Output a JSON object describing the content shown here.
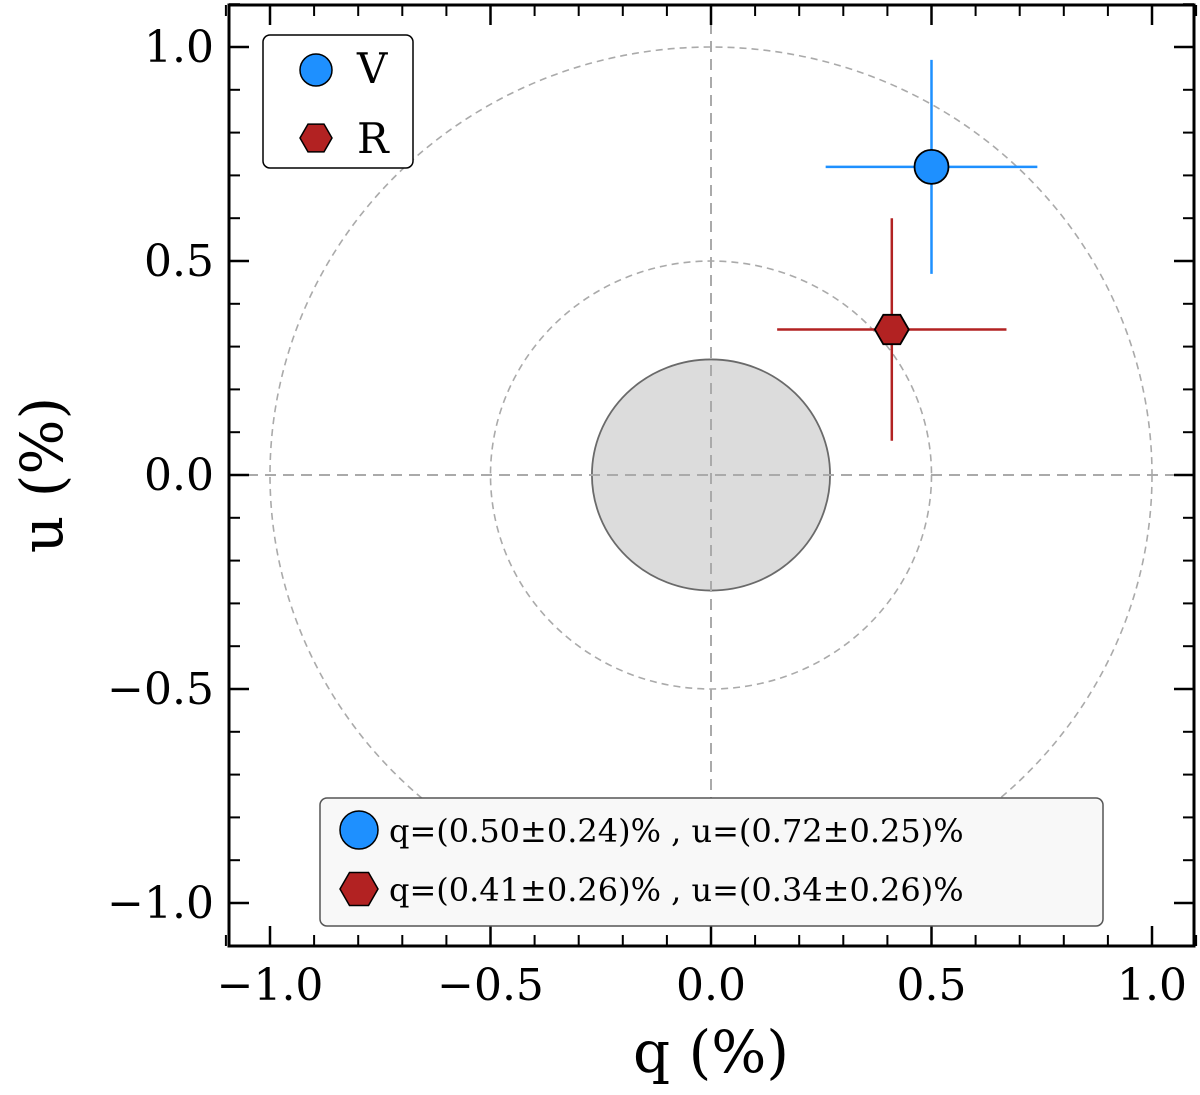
{
  "chart_data": {
    "type": "scatter",
    "title": "",
    "xlabel": "q (%)",
    "ylabel": "u (%)",
    "xlim": [
      -1.1,
      1.1
    ],
    "ylim": [
      -1.1,
      1.1
    ],
    "xticks": [
      -1.0,
      -0.5,
      0.0,
      0.5,
      1.0
    ],
    "yticks": [
      -1.0,
      -0.5,
      0.0,
      0.5,
      1.0
    ],
    "xtick_labels": [
      "−1.0",
      "−0.5",
      "0.0",
      "0.5",
      "1.0"
    ],
    "ytick_labels": [
      "−1.0",
      "−0.5",
      "0.0",
      "0.5",
      "1.0"
    ],
    "grid": false,
    "reference_circles": [
      {
        "radius": 0.5,
        "style": "dashed"
      },
      {
        "radius": 1.0,
        "style": "dashed"
      }
    ],
    "shaded_region": {
      "shape": "circle",
      "radius": 0.27,
      "center": [
        0,
        0
      ]
    },
    "series": [
      {
        "name": "V",
        "marker": "circle",
        "color": "#1e90ff",
        "q": 0.5,
        "q_err": 0.24,
        "u": 0.72,
        "u_err": 0.25
      },
      {
        "name": "R",
        "marker": "hexagon",
        "color": "#b22222",
        "q": 0.41,
        "q_err": 0.26,
        "u": 0.34,
        "u_err": 0.26
      }
    ],
    "legend": {
      "placement": "top-left",
      "entries": [
        "V",
        "R"
      ]
    },
    "stats_box": {
      "placement": "bottom-right",
      "lines": [
        "q=(0.50±0.24)% , u=(0.72±0.25)%",
        "q=(0.41±0.26)% , u=(0.34±0.26)%"
      ]
    }
  }
}
